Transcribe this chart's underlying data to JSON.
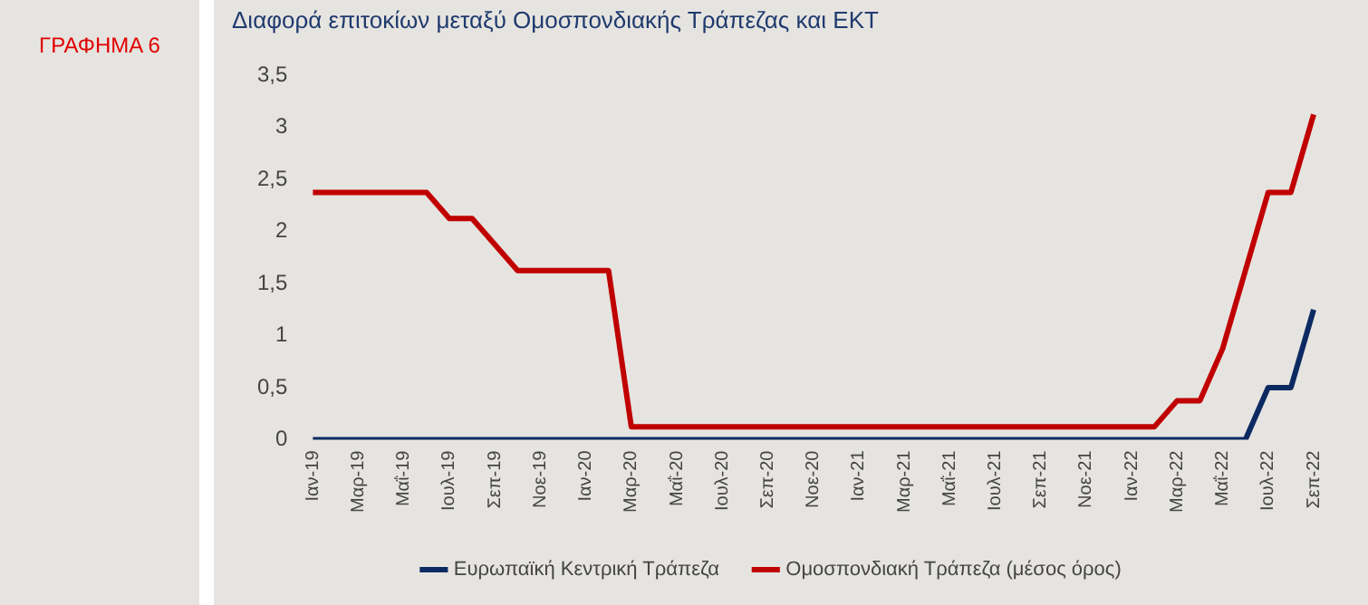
{
  "chart_data": {
    "type": "line",
    "title": "Διαφορά επιτοκίων μεταξύ Ομοσπονδιακής Τράπεζας και ΕΚΤ",
    "annotations": [
      "ΓΡΑΦΗΜΑ 6"
    ],
    "categories": [
      "Ιαν-19",
      null,
      "Μαρ-19",
      null,
      "Μαΐ-19",
      null,
      "Ιουλ-19",
      null,
      "Σεπ-19",
      null,
      "Νοε-19",
      null,
      "Ιαν-20",
      null,
      "Μαρ-20",
      null,
      "Μαΐ-20",
      null,
      "Ιουλ-20",
      null,
      "Σεπ-20",
      null,
      "Νοε-20",
      null,
      "Ιαν-21",
      null,
      "Μαρ-21",
      null,
      "Μαΐ-21",
      null,
      "Ιουλ-21",
      null,
      "Σεπ-21",
      null,
      "Νοε-21",
      null,
      "Ιαν-22",
      null,
      "Μαρ-22",
      null,
      "Μαΐ-22",
      null,
      "Ιουλ-22",
      null,
      "Σεπ-22"
    ],
    "series": [
      {
        "name": "Ευρωπαϊκή Κεντρική Τράπεζα",
        "color": "#0c2a62",
        "values": [
          0,
          0,
          0,
          0,
          0,
          0,
          0,
          0,
          0,
          0,
          0,
          0,
          0,
          0,
          0,
          0,
          0,
          0,
          0,
          0,
          0,
          0,
          0,
          0,
          0,
          0,
          0,
          0,
          0,
          0,
          0,
          0,
          0,
          0,
          0,
          0,
          0,
          0,
          0,
          0,
          0,
          0,
          0.5,
          0.5,
          1.25
        ]
      },
      {
        "name": "Ομοσπονδιακή Τράπεζα (μέσος όρος)",
        "color": "#c00000",
        "values": [
          2.375,
          2.375,
          2.375,
          2.375,
          2.375,
          2.375,
          2.125,
          2.125,
          1.875,
          1.625,
          1.625,
          1.625,
          1.625,
          1.625,
          0.125,
          0.125,
          0.125,
          0.125,
          0.125,
          0.125,
          0.125,
          0.125,
          0.125,
          0.125,
          0.125,
          0.125,
          0.125,
          0.125,
          0.125,
          0.125,
          0.125,
          0.125,
          0.125,
          0.125,
          0.125,
          0.125,
          0.125,
          0.125,
          0.375,
          0.375,
          0.875,
          1.625,
          2.375,
          2.375,
          3.125
        ]
      }
    ],
    "ylim": [
      0,
      3.5
    ],
    "yticks": [
      0,
      {
        "value": 0.5,
        "label": "0,5"
      },
      1,
      {
        "value": 1.5,
        "label": "1,5"
      },
      2,
      {
        "value": 2.5,
        "label": "2,5"
      },
      3,
      {
        "value": 3.5,
        "label": "3,5"
      }
    ],
    "grid": false,
    "legend": "bottom",
    "marker": "none",
    "line_style": "solid"
  }
}
